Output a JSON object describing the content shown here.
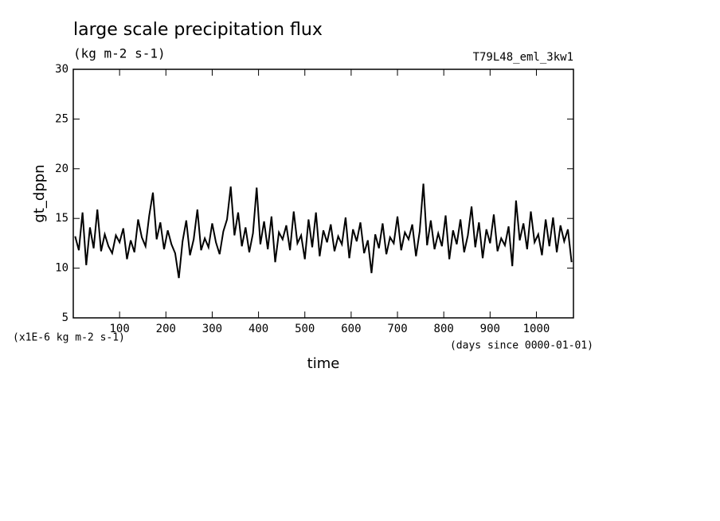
{
  "chart_data": {
    "type": "line",
    "title": "large scale precipitation flux",
    "subtitle": "(kg m-2 s-1)",
    "run_label": "T79L48_eml_3kw1",
    "ylabel": "gt_dppn",
    "xlabel": "time",
    "y_unit_note": "(x1E-6 kg m-2 s-1)",
    "x_unit_note": "(days since 0000-01-01)",
    "color": "#000000",
    "xlim": [
      0,
      1080
    ],
    "xticks": [
      100,
      200,
      300,
      400,
      500,
      600,
      700,
      800,
      900,
      1000
    ],
    "ylim": [
      5,
      30
    ],
    "yticks": [
      5,
      10,
      15,
      20,
      25,
      30
    ],
    "x": [
      4,
      12,
      20,
      28,
      36,
      44,
      52,
      60,
      68,
      76,
      84,
      92,
      100,
      108,
      116,
      124,
      132,
      140,
      148,
      156,
      164,
      172,
      180,
      188,
      196,
      204,
      212,
      220,
      228,
      236,
      244,
      252,
      260,
      268,
      276,
      284,
      292,
      300,
      308,
      316,
      324,
      332,
      340,
      348,
      356,
      364,
      372,
      380,
      388,
      396,
      404,
      412,
      420,
      428,
      436,
      444,
      452,
      460,
      468,
      476,
      484,
      492,
      500,
      508,
      516,
      524,
      532,
      540,
      548,
      556,
      564,
      572,
      580,
      588,
      596,
      604,
      612,
      620,
      628,
      636,
      644,
      652,
      660,
      668,
      676,
      684,
      692,
      700,
      708,
      716,
      724,
      732,
      740,
      748,
      756,
      764,
      772,
      780,
      788,
      796,
      804,
      812,
      820,
      828,
      836,
      844,
      852,
      860,
      868,
      876,
      884,
      892,
      900,
      908,
      916,
      924,
      932,
      940,
      948,
      956,
      964,
      972,
      980,
      988,
      996,
      1004,
      1012,
      1020,
      1028,
      1036,
      1044,
      1052,
      1060,
      1068,
      1076
    ],
    "values": [
      13.2,
      11.8,
      15.6,
      10.3,
      14.1,
      12.0,
      15.9,
      11.7,
      13.4,
      12.2,
      11.5,
      13.3,
      12.6,
      14.0,
      10.9,
      12.8,
      11.6,
      14.9,
      13.1,
      12.2,
      15.3,
      17.6,
      12.9,
      14.6,
      11.9,
      13.8,
      12.4,
      11.5,
      9.0,
      12.7,
      14.8,
      11.3,
      12.9,
      15.9,
      11.8,
      13.0,
      12.1,
      14.5,
      12.6,
      11.4,
      13.7,
      14.9,
      18.2,
      13.3,
      15.6,
      12.2,
      14.1,
      11.6,
      13.5,
      18.1,
      12.4,
      14.7,
      11.9,
      15.2,
      10.6,
      13.6,
      12.9,
      14.3,
      11.8,
      15.7,
      12.5,
      13.3,
      10.9,
      14.9,
      12.1,
      15.6,
      11.2,
      13.8,
      12.6,
      14.4,
      11.7,
      13.2,
      12.4,
      15.1,
      11.0,
      13.9,
      12.7,
      14.6,
      11.5,
      12.8,
      9.5,
      13.4,
      12.0,
      14.5,
      11.4,
      13.1,
      12.5,
      15.2,
      11.8,
      13.6,
      12.9,
      14.4,
      11.2,
      13.7,
      18.5,
      12.3,
      14.8,
      11.9,
      13.5,
      12.2,
      15.3,
      10.9,
      13.8,
      12.4,
      14.9,
      11.6,
      13.3,
      16.2,
      12.1,
      14.6,
      11.0,
      13.9,
      12.5,
      15.4,
      11.7,
      13.0,
      12.3,
      14.2,
      10.2,
      16.8,
      12.8,
      14.5,
      11.9,
      15.7,
      12.6,
      13.4,
      11.3,
      14.9,
      12.2,
      15.1,
      11.6,
      14.3,
      12.7,
      13.9,
      10.6
    ]
  }
}
